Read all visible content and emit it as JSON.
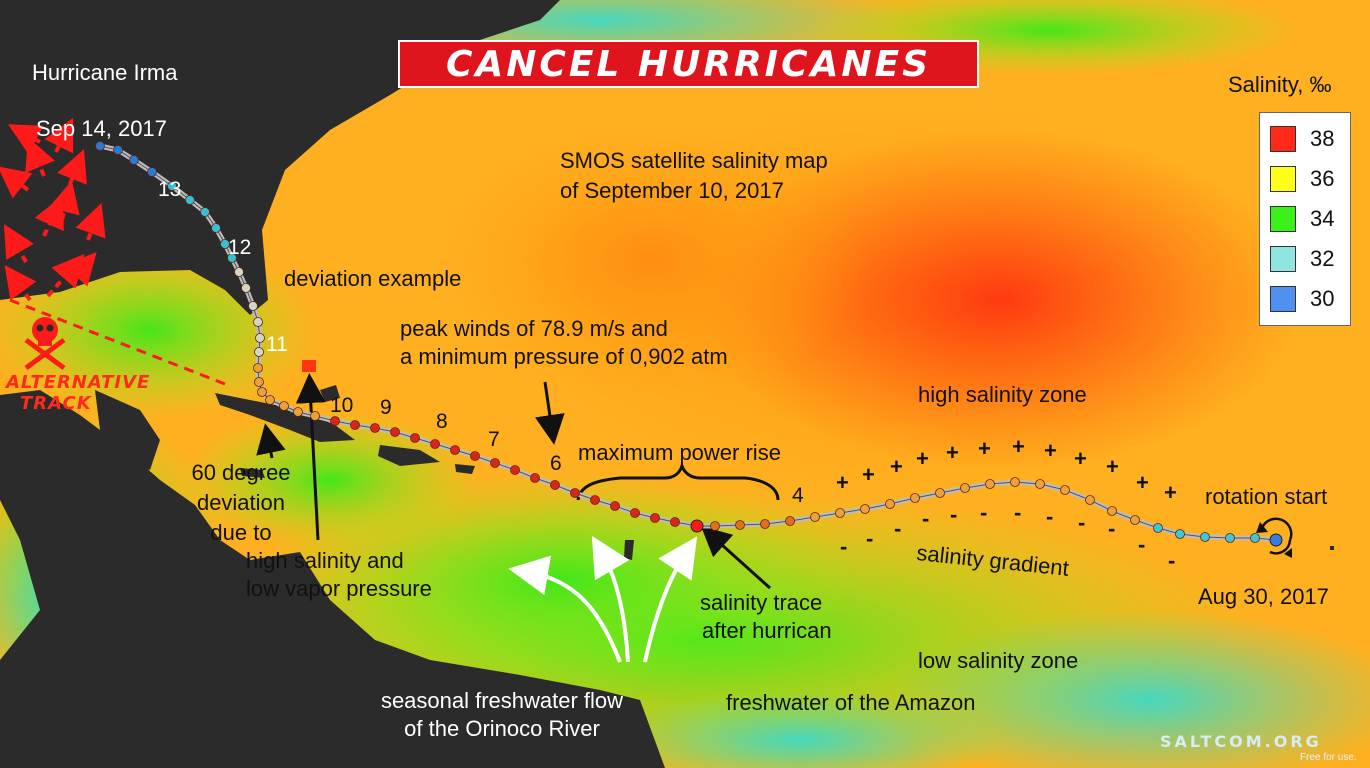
{
  "banner": "CANCEL HURRICANES",
  "storm": {
    "name": "Hurricane Irma",
    "end_date": "Sep 14, 2017",
    "start_date": "Aug 30, 2017"
  },
  "map_caption": {
    "line1": "SMOS satellite salinity map",
    "line2": "of September 10, 2017"
  },
  "track_numbers": [
    "13",
    "12",
    "11",
    "10",
    "9",
    "8",
    "7",
    "6",
    "4"
  ],
  "annotations": {
    "deviation_example": "deviation example",
    "peak_line1": "peak winds of 78.9 m/s and",
    "peak_line2": "a minimum pressure of 0,902 atm",
    "max_power": "maximum power rise",
    "high_zone": "high salinity zone",
    "rotation_start": "rotation start",
    "gradient": "salinity gradient",
    "low_zone": "low salinity zone",
    "amazon": "freshwater of the Amazon",
    "trace_line1": "salinity trace",
    "trace_line2": "after hurrican",
    "dev_line1": "60 degree",
    "dev_line2": "deviation",
    "dev_line3": "due to",
    "salinity_line1": "high salinity and",
    "salinity_line2": "low vapor pressure",
    "orinoco_line1": "seasonal freshwater flow",
    "orinoco_line2": "of the Orinoco River",
    "alt_line1": "ALTERNATIVE",
    "alt_line2": "TRACK"
  },
  "gradient_signs": {
    "plus": "+",
    "minus": "-"
  },
  "legend": {
    "title": "Salinity, ‰",
    "items": [
      {
        "value": "38",
        "color": "#ff2a1a"
      },
      {
        "value": "36",
        "color": "#ffff1a"
      },
      {
        "value": "34",
        "color": "#3cf01a"
      },
      {
        "value": "32",
        "color": "#8fe6e0"
      },
      {
        "value": "30",
        "color": "#4f8ff0"
      }
    ]
  },
  "footer": {
    "brand": "SALTCOM.ORG",
    "note": "Free for use."
  },
  "colors": {
    "land": "#2b2b2b",
    "ocean_low": "#3cf01a",
    "ocean_mid": "#ffff1a",
    "ocean_high": "#ff2a1a",
    "track": "#c8c8c8",
    "alternative": "#ff1a1a"
  }
}
